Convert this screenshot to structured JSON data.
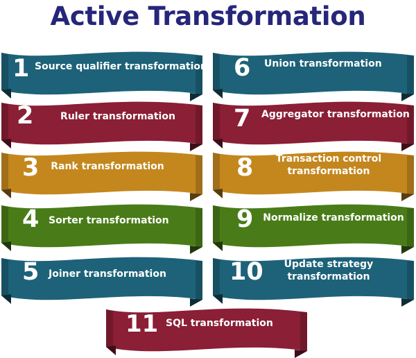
{
  "title": "Active Transformation",
  "colors": {
    "title": "#26267a",
    "teal": "#1d6279",
    "maroon": "#8a1f35",
    "ochre": "#c4871e",
    "green": "#497c18"
  },
  "items": [
    {
      "number": "1",
      "label": "Source qualifier transformation",
      "color": "teal"
    },
    {
      "number": "2",
      "label": "Ruler transformation",
      "color": "maroon"
    },
    {
      "number": "3",
      "label": "Rank transformation",
      "color": "ochre"
    },
    {
      "number": "4",
      "label": "Sorter transformation",
      "color": "green"
    },
    {
      "number": "5",
      "label": "Joiner transformation",
      "color": "teal"
    },
    {
      "number": "6",
      "label": "Union transformation",
      "color": "teal"
    },
    {
      "number": "7",
      "label": "Aggregator transformation",
      "color": "maroon"
    },
    {
      "number": "8",
      "label": "Transaction control transformation",
      "label_lines": [
        "Transaction control",
        "transformation"
      ],
      "color": "ochre"
    },
    {
      "number": "9",
      "label": "Normalize transformation",
      "color": "green"
    },
    {
      "number": "10",
      "label": "Update strategy transformation",
      "label_lines": [
        "Update strategy",
        "transformation"
      ],
      "color": "teal"
    },
    {
      "number": "11",
      "label": "SQL transformation",
      "color": "maroon"
    }
  ]
}
